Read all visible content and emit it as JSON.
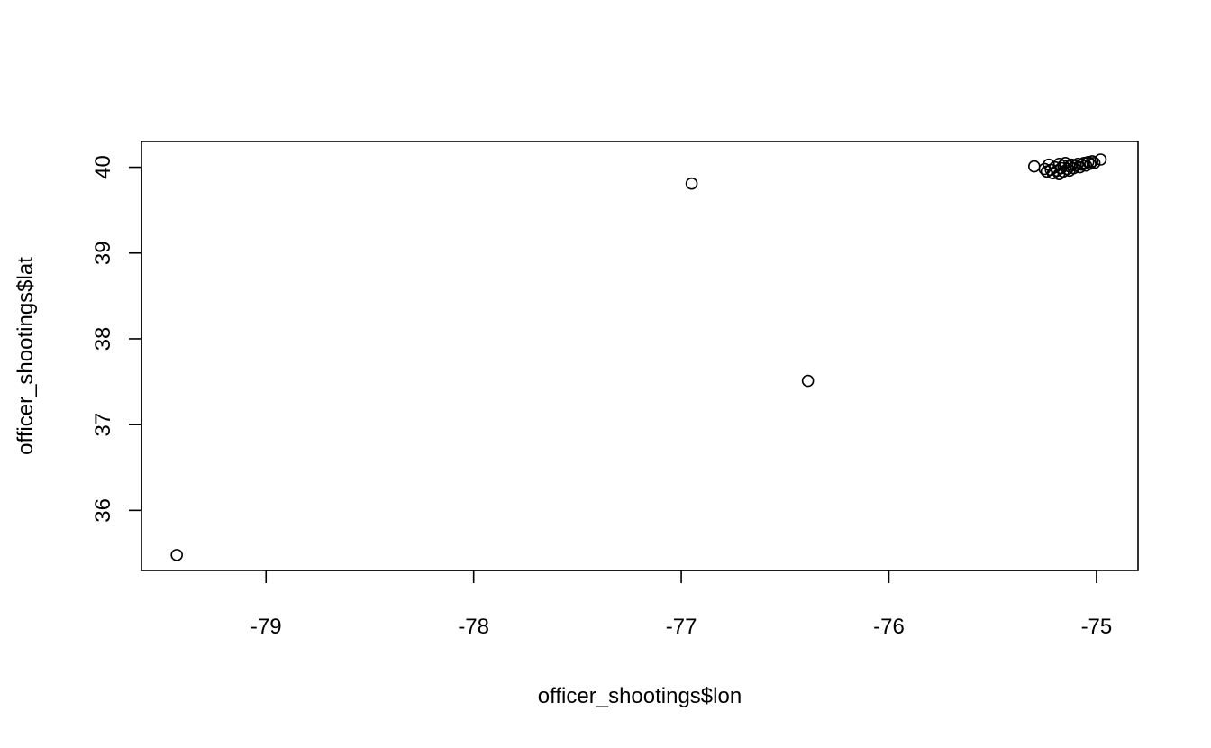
{
  "chart_data": {
    "type": "scatter",
    "title": "",
    "xlabel": "officer_shootings$lon",
    "ylabel": "officer_shootings$lat",
    "xlim": [
      -79.6,
      -74.8
    ],
    "ylim": [
      35.3,
      40.3
    ],
    "xticks": [
      -79,
      -78,
      -77,
      -76,
      -75
    ],
    "yticks": [
      36,
      37,
      38,
      39,
      40
    ],
    "grid": false,
    "marker": "open-circle",
    "color": "#000000",
    "points": [
      {
        "x": -79.43,
        "y": 35.48
      },
      {
        "x": -76.95,
        "y": 39.81
      },
      {
        "x": -76.39,
        "y": 37.51
      },
      {
        "x": -75.3,
        "y": 40.01
      },
      {
        "x": -75.25,
        "y": 39.98
      },
      {
        "x": -75.24,
        "y": 39.95
      },
      {
        "x": -75.23,
        "y": 40.03
      },
      {
        "x": -75.22,
        "y": 39.97
      },
      {
        "x": -75.21,
        "y": 39.93
      },
      {
        "x": -75.2,
        "y": 40.0
      },
      {
        "x": -75.19,
        "y": 39.96
      },
      {
        "x": -75.18,
        "y": 40.04
      },
      {
        "x": -75.18,
        "y": 39.92
      },
      {
        "x": -75.17,
        "y": 39.99
      },
      {
        "x": -75.16,
        "y": 40.02
      },
      {
        "x": -75.16,
        "y": 39.95
      },
      {
        "x": -75.15,
        "y": 40.05
      },
      {
        "x": -75.14,
        "y": 39.98
      },
      {
        "x": -75.13,
        "y": 40.01
      },
      {
        "x": -75.13,
        "y": 39.96
      },
      {
        "x": -75.12,
        "y": 40.03
      },
      {
        "x": -75.11,
        "y": 39.99
      },
      {
        "x": -75.1,
        "y": 40.02
      },
      {
        "x": -75.09,
        "y": 40.04
      },
      {
        "x": -75.08,
        "y": 40.0
      },
      {
        "x": -75.07,
        "y": 40.03
      },
      {
        "x": -75.06,
        "y": 40.05
      },
      {
        "x": -75.05,
        "y": 40.02
      },
      {
        "x": -75.04,
        "y": 40.06
      },
      {
        "x": -75.03,
        "y": 40.04
      },
      {
        "x": -75.02,
        "y": 40.07
      },
      {
        "x": -75.01,
        "y": 40.05
      },
      {
        "x": -74.98,
        "y": 40.09
      }
    ]
  }
}
